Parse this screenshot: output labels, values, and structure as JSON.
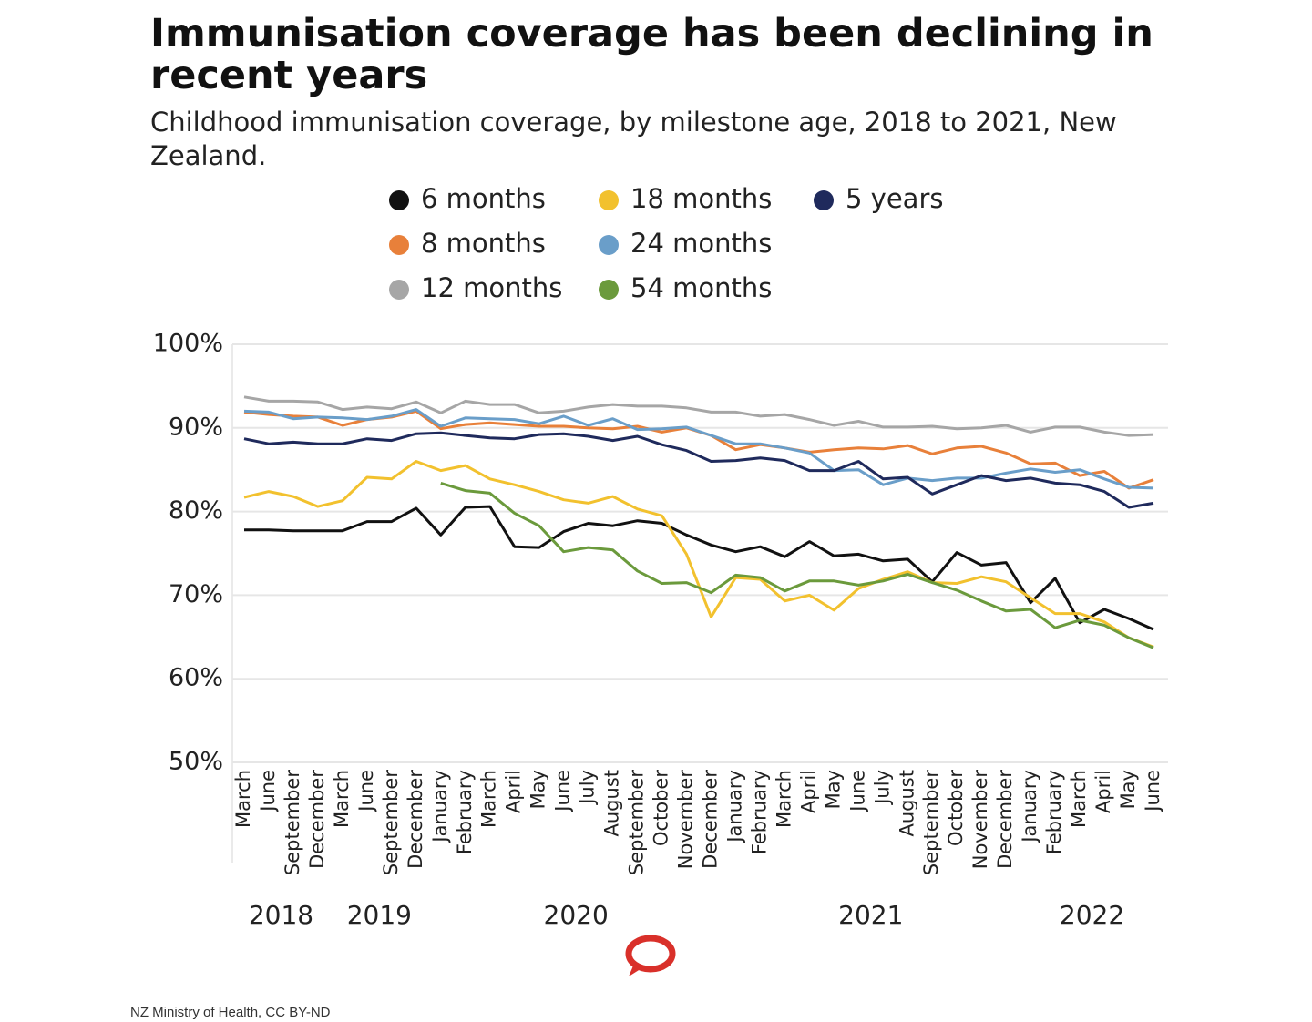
{
  "chart_data": {
    "type": "line",
    "title": "Immunisation coverage has been declining in recent years",
    "subtitle": "Childhood immunisation coverage, by milestone age, 2018 to 2021, New Zealand.",
    "source": "NZ Ministry of Health, CC BY-ND",
    "categories": [
      "March",
      "June",
      "September",
      "December",
      "March",
      "June",
      "September",
      "December",
      "January",
      "February",
      "March",
      "April",
      "May",
      "June",
      "July",
      "August",
      "September",
      "October",
      "November",
      "December",
      "January",
      "February",
      "March",
      "April",
      "May",
      "June",
      "July",
      "August",
      "September",
      "October",
      "November",
      "December",
      "January",
      "February",
      "March",
      "April",
      "May",
      "June"
    ],
    "years": [
      "2018",
      "2019",
      "2020",
      "2021",
      "2022"
    ],
    "ylim": [
      50,
      100
    ],
    "yticks": [
      {
        "value": 50,
        "label": "50%"
      },
      {
        "value": 60,
        "label": "60%"
      },
      {
        "value": 70,
        "label": "70%"
      },
      {
        "value": 80,
        "label": "80%"
      },
      {
        "value": 90,
        "label": "90%"
      },
      {
        "value": 100,
        "label": "100%"
      }
    ],
    "grid": true,
    "series": [
      {
        "name": "6 months",
        "color": "#111111",
        "values": [
          77.8,
          77.8,
          77.7,
          77.7,
          77.7,
          78.8,
          78.8,
          80.4,
          77.2,
          80.5,
          80.6,
          75.8,
          75.7,
          77.6,
          78.6,
          78.3,
          78.9,
          78.6,
          77.2,
          76.0,
          75.2,
          75.8,
          74.6,
          76.4,
          74.7,
          74.9,
          74.1,
          74.3,
          71.6,
          75.1,
          73.6,
          73.9,
          69.1,
          72.0,
          66.7,
          68.3,
          67.2,
          65.9
        ]
      },
      {
        "name": "8 months",
        "color": "#e8803a",
        "values": [
          91.9,
          91.6,
          91.4,
          91.3,
          90.3,
          91.0,
          91.3,
          92.0,
          89.9,
          90.4,
          90.6,
          90.4,
          90.2,
          90.2,
          90.0,
          89.9,
          90.2,
          89.5,
          90.0,
          89.1,
          87.4,
          88.0,
          87.6,
          87.1,
          87.4,
          87.6,
          87.5,
          87.9,
          86.9,
          87.6,
          87.8,
          87.0,
          85.7,
          85.8,
          84.3,
          84.8,
          82.8,
          83.8
        ]
      },
      {
        "name": "12 months",
        "color": "#a6a6a6",
        "values": [
          93.7,
          93.2,
          93.2,
          93.1,
          92.2,
          92.5,
          92.3,
          93.1,
          91.8,
          93.2,
          92.8,
          92.8,
          91.8,
          92.0,
          92.5,
          92.8,
          92.6,
          92.6,
          92.4,
          91.9,
          91.9,
          91.4,
          91.6,
          91.0,
          90.3,
          90.8,
          90.1,
          90.1,
          90.2,
          89.9,
          90.0,
          90.3,
          89.5,
          90.1,
          90.1,
          89.5,
          89.1,
          89.2
        ]
      },
      {
        "name": "18 months",
        "color": "#f2c12e",
        "values": [
          81.7,
          82.4,
          81.8,
          80.6,
          81.3,
          84.1,
          83.9,
          86.0,
          84.9,
          85.5,
          83.9,
          83.2,
          82.4,
          81.4,
          81.0,
          81.8,
          80.3,
          79.5,
          74.9,
          67.4,
          72.1,
          71.9,
          69.3,
          70.0,
          68.2,
          70.8,
          71.9,
          72.8,
          71.5,
          71.4,
          72.2,
          71.6,
          69.7,
          67.8,
          67.8,
          66.8,
          64.9,
          63.8
        ]
      },
      {
        "name": "24 months",
        "color": "#6a9ec9",
        "values": [
          92.0,
          91.9,
          91.1,
          91.3,
          91.2,
          91.0,
          91.4,
          92.2,
          90.2,
          91.2,
          91.1,
          91.0,
          90.5,
          91.4,
          90.3,
          91.1,
          89.8,
          89.9,
          90.1,
          89.1,
          88.1,
          88.1,
          87.6,
          87.0,
          84.9,
          85.0,
          83.2,
          84.0,
          83.7,
          84.0,
          84.0,
          84.6,
          85.1,
          84.7,
          85.0,
          83.9,
          82.9,
          82.8
        ]
      },
      {
        "name": "54 months",
        "color": "#6b9a3c",
        "values": [
          null,
          null,
          null,
          null,
          null,
          null,
          null,
          null,
          83.4,
          82.5,
          82.2,
          79.8,
          78.3,
          75.2,
          75.7,
          75.4,
          72.9,
          71.4,
          71.5,
          70.3,
          72.4,
          72.1,
          70.5,
          71.7,
          71.7,
          71.2,
          71.7,
          72.5,
          71.5,
          70.6,
          69.3,
          68.1,
          68.3,
          66.1,
          67.0,
          66.4,
          64.9,
          63.7
        ]
      },
      {
        "name": "5 years",
        "color": "#1f2a5c",
        "values": [
          88.7,
          88.1,
          88.3,
          88.1,
          88.1,
          88.7,
          88.5,
          89.3,
          89.4,
          89.1,
          88.8,
          88.7,
          89.2,
          89.3,
          89.0,
          88.5,
          89.0,
          88.0,
          87.3,
          86.0,
          86.1,
          86.4,
          86.1,
          84.9,
          84.9,
          86.0,
          83.9,
          84.1,
          82.1,
          83.2,
          84.3,
          83.7,
          84.0,
          83.4,
          83.2,
          82.4,
          80.5,
          81.0
        ]
      }
    ]
  }
}
